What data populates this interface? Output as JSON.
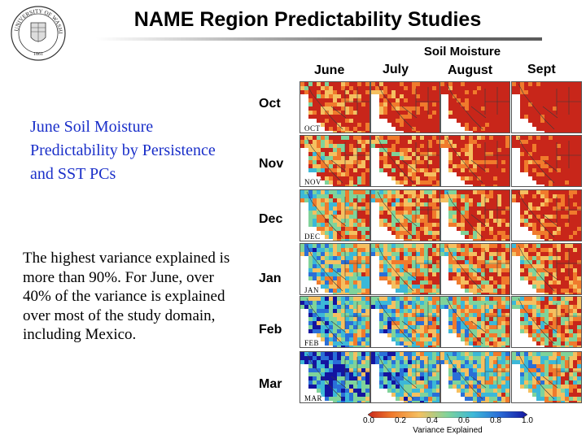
{
  "header": {
    "title": "NAME Region Predictability Studies"
  },
  "logo": {
    "name": "university-of-washington-seal",
    "text_top": "UNIVERSITY OF WASHINGTON",
    "text_bottom": "1861"
  },
  "left_panel": {
    "blue_heading": "June Soil Moisture Predictability by Persistence and SST PCs",
    "summary": "The highest variance explained is more than 90%. For June, over 40% of the variance is explained over most of the study domain, including Mexico."
  },
  "grid": {
    "super_title": "Soil Moisture",
    "columns": [
      "June",
      "July",
      "August",
      "Sept"
    ],
    "rows": [
      {
        "label": "Oct",
        "tag": "OCT"
      },
      {
        "label": "Nov",
        "tag": "NOV"
      },
      {
        "label": "Dec",
        "tag": "DEC"
      },
      {
        "label": "Jan",
        "tag": "JAN"
      },
      {
        "label": "Feb",
        "tag": "FEB"
      },
      {
        "label": "Mar",
        "tag": "MAR"
      }
    ]
  },
  "colorbar": {
    "ticks": [
      "0.0",
      "0.2",
      "0.4",
      "0.6",
      "0.8",
      "1.0"
    ],
    "label": "Variance Explained",
    "colors": [
      "#c8261a",
      "#f07a2c",
      "#f5c060",
      "#7fd39a",
      "#3cb8d8",
      "#2a6fd8",
      "#1414a0"
    ]
  }
}
